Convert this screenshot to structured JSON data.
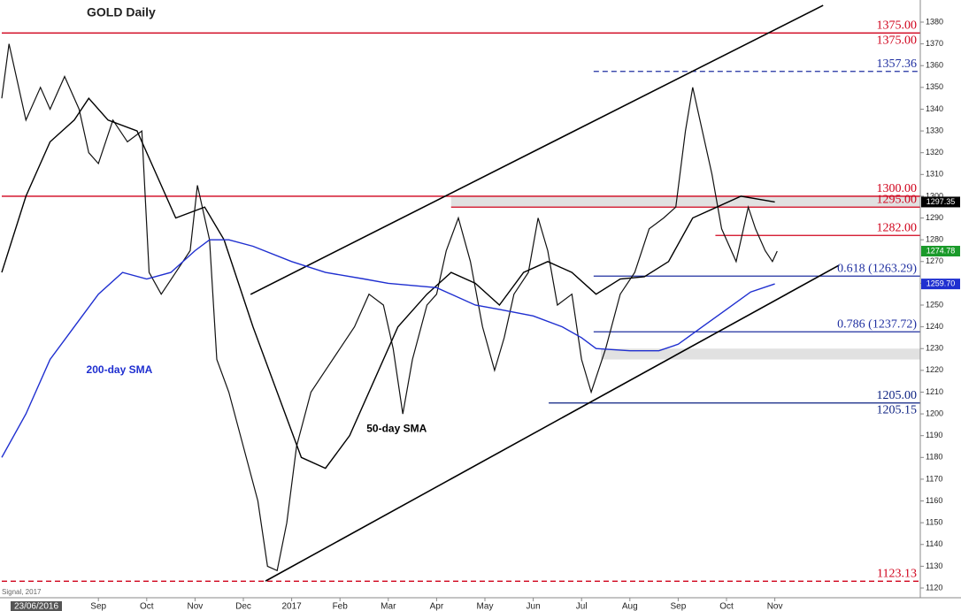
{
  "chart_data": {
    "type": "line",
    "title": "GOLD Daily",
    "cursor_label": "23/06/2016",
    "source": "Signal, 2017",
    "xlim": [
      0,
      19
    ],
    "ylim": [
      1120,
      1380
    ],
    "xticks": [
      {
        "value": 2,
        "label": "Sep"
      },
      {
        "value": 3,
        "label": "Oct"
      },
      {
        "value": 4,
        "label": "Nov"
      },
      {
        "value": 5,
        "label": "Dec"
      },
      {
        "value": 6,
        "label": "2017"
      },
      {
        "value": 7,
        "label": "Feb"
      },
      {
        "value": 8,
        "label": "Mar"
      },
      {
        "value": 9,
        "label": "Apr"
      },
      {
        "value": 10,
        "label": "May"
      },
      {
        "value": 11,
        "label": "Jun"
      },
      {
        "value": 12,
        "label": "Jul"
      },
      {
        "value": 13,
        "label": "Aug"
      },
      {
        "value": 14,
        "label": "Sep"
      },
      {
        "value": 15,
        "label": "Oct"
      },
      {
        "value": 16,
        "label": "Nov"
      }
    ],
    "yticks": [
      1120,
      1130,
      1140,
      1150,
      1160,
      1170,
      1180,
      1190,
      1200,
      1210,
      1220,
      1230,
      1240,
      1250,
      1260,
      1270,
      1280,
      1290,
      1300,
      1310,
      1320,
      1330,
      1340,
      1350,
      1360,
      1370,
      1380
    ],
    "series": [
      {
        "name": "GOLD",
        "color": "#111111",
        "width": 1.2,
        "x": [
          0.0,
          0.15,
          0.5,
          0.8,
          1.0,
          1.3,
          1.6,
          1.8,
          2.0,
          2.3,
          2.6,
          2.9,
          3.05,
          3.3,
          3.6,
          3.9,
          4.05,
          4.3,
          4.45,
          4.7,
          5.0,
          5.3,
          5.5,
          5.7,
          5.9,
          6.1,
          6.4,
          6.7,
          7.0,
          7.3,
          7.6,
          7.9,
          8.1,
          8.3,
          8.5,
          8.8,
          9.0,
          9.2,
          9.45,
          9.7,
          9.95,
          10.2,
          10.4,
          10.6,
          10.9,
          11.1,
          11.3,
          11.5,
          11.8,
          12.0,
          12.2,
          12.5,
          12.8,
          13.1,
          13.4,
          13.7,
          13.95,
          14.15,
          14.3,
          14.5,
          14.7,
          14.9,
          15.2,
          15.45,
          15.6,
          15.8,
          15.95,
          16.05
        ],
        "values": [
          1345,
          1370,
          1335,
          1350,
          1340,
          1355,
          1340,
          1320,
          1315,
          1335,
          1325,
          1330,
          1265,
          1255,
          1265,
          1275,
          1305,
          1280,
          1225,
          1210,
          1185,
          1160,
          1130,
          1128,
          1150,
          1185,
          1210,
          1220,
          1230,
          1240,
          1255,
          1250,
          1230,
          1200,
          1225,
          1250,
          1255,
          1275,
          1290,
          1270,
          1240,
          1220,
          1235,
          1255,
          1265,
          1290,
          1275,
          1250,
          1255,
          1225,
          1210,
          1230,
          1255,
          1265,
          1285,
          1290,
          1295,
          1330,
          1350,
          1330,
          1310,
          1285,
          1270,
          1295,
          1285,
          1275,
          1270,
          1274.78
        ]
      },
      {
        "name": "50-day SMA",
        "color": "#000000",
        "width": 1.4,
        "x": [
          0.0,
          0.5,
          1.0,
          1.5,
          1.8,
          2.2,
          2.8,
          3.1,
          3.6,
          4.2,
          4.6,
          5.2,
          5.7,
          6.2,
          6.7,
          7.2,
          7.7,
          8.2,
          8.8,
          9.3,
          9.8,
          10.3,
          10.8,
          11.3,
          11.8,
          12.3,
          12.8,
          13.3,
          13.8,
          14.3,
          14.8,
          15.3,
          16.0
        ],
        "values": [
          1265,
          1300,
          1325,
          1335,
          1345,
          1335,
          1330,
          1315,
          1290,
          1295,
          1280,
          1240,
          1210,
          1180,
          1175,
          1190,
          1215,
          1240,
          1255,
          1265,
          1260,
          1250,
          1265,
          1270,
          1265,
          1255,
          1262,
          1263,
          1270,
          1290,
          1295,
          1300,
          1297.35
        ]
      },
      {
        "name": "200-day SMA",
        "color": "#1f2fd0",
        "width": 1.4,
        "x": [
          0.0,
          0.5,
          1.0,
          1.5,
          2.0,
          2.5,
          3.0,
          3.5,
          4.0,
          4.3,
          4.7,
          5.2,
          6.0,
          6.7,
          7.5,
          8.0,
          9.0,
          9.8,
          10.3,
          11.0,
          11.6,
          12.0,
          12.3,
          13.0,
          13.6,
          14.0,
          14.5,
          15.0,
          15.5,
          16.0
        ],
        "values": [
          1180,
          1200,
          1225,
          1240,
          1255,
          1265,
          1262,
          1265,
          1275,
          1280,
          1280,
          1277,
          1270,
          1265,
          1262,
          1260,
          1258,
          1250,
          1248,
          1245,
          1240,
          1235,
          1230,
          1229,
          1229,
          1232,
          1240,
          1248,
          1256,
          1259.7
        ]
      }
    ],
    "series_labels": [
      {
        "name": "200-day SMA",
        "x": 1.75,
        "value": 1220,
        "color": "#1f2fd0"
      },
      {
        "name": "50-day SMA",
        "x": 7.55,
        "value": 1193,
        "color": "#000000"
      }
    ],
    "trendlines": [
      {
        "x": [
          5.15,
          17.0
        ],
        "values": [
          1254.9,
          1387.7
        ]
      },
      {
        "x": [
          5.46,
          17.33
        ],
        "values": [
          1123.2,
          1268.3
        ]
      }
    ],
    "zones": [
      {
        "from": 9.3,
        "low": 1295,
        "high": 1300
      },
      {
        "from": 12.4,
        "low": 1225,
        "high": 1230
      }
    ],
    "levels": [
      {
        "value": 1375,
        "label": "1375.00",
        "from": 0,
        "color": "#d0021b",
        "dashed": false
      },
      {
        "value": 1357.36,
        "label": "1357.36",
        "from": 12.25,
        "color": "#1f2fa0",
        "dashed": true
      },
      {
        "value": 1300,
        "label": "1300.00",
        "from": 0,
        "color": "#d0021b",
        "dashed": false
      },
      {
        "value": 1295,
        "label": "1295.00",
        "from": 9.3,
        "color": "#d0021b",
        "dashed": false
      },
      {
        "value": 1282,
        "label": "1282.00",
        "from": 14.77,
        "color": "#d0021b",
        "dashed": false
      },
      {
        "value": 1263.29,
        "label": "0.618 (1263.29)",
        "from": 12.25,
        "color": "#1f2fa0",
        "dashed": false
      },
      {
        "value": 1237.72,
        "label": "0.786 (1237.72)",
        "from": 12.25,
        "color": "#1f2fa0",
        "dashed": false
      },
      {
        "value": 1205,
        "label": "1205.00",
        "from": 11.32,
        "color": "#0a1f80",
        "dashed": false
      },
      {
        "value": 1123.13,
        "label": "1123.13",
        "from": 0,
        "color": "#d0021b",
        "dashed": true
      }
    ],
    "level_notes": [
      {
        "value": 1375,
        "label": "1375.00",
        "color": "#d0021b"
      },
      {
        "value": 1205.15,
        "label": "1205.15",
        "color": "#0a1f80"
      }
    ],
    "price_tags": [
      {
        "value": 1297.35,
        "label": "1297.35",
        "bg": "#000000"
      },
      {
        "value": 1274.78,
        "label": "1274.78",
        "bg": "#1a9a2a"
      },
      {
        "value": 1259.7,
        "label": "1259.70",
        "bg": "#1f2fd0"
      }
    ]
  }
}
